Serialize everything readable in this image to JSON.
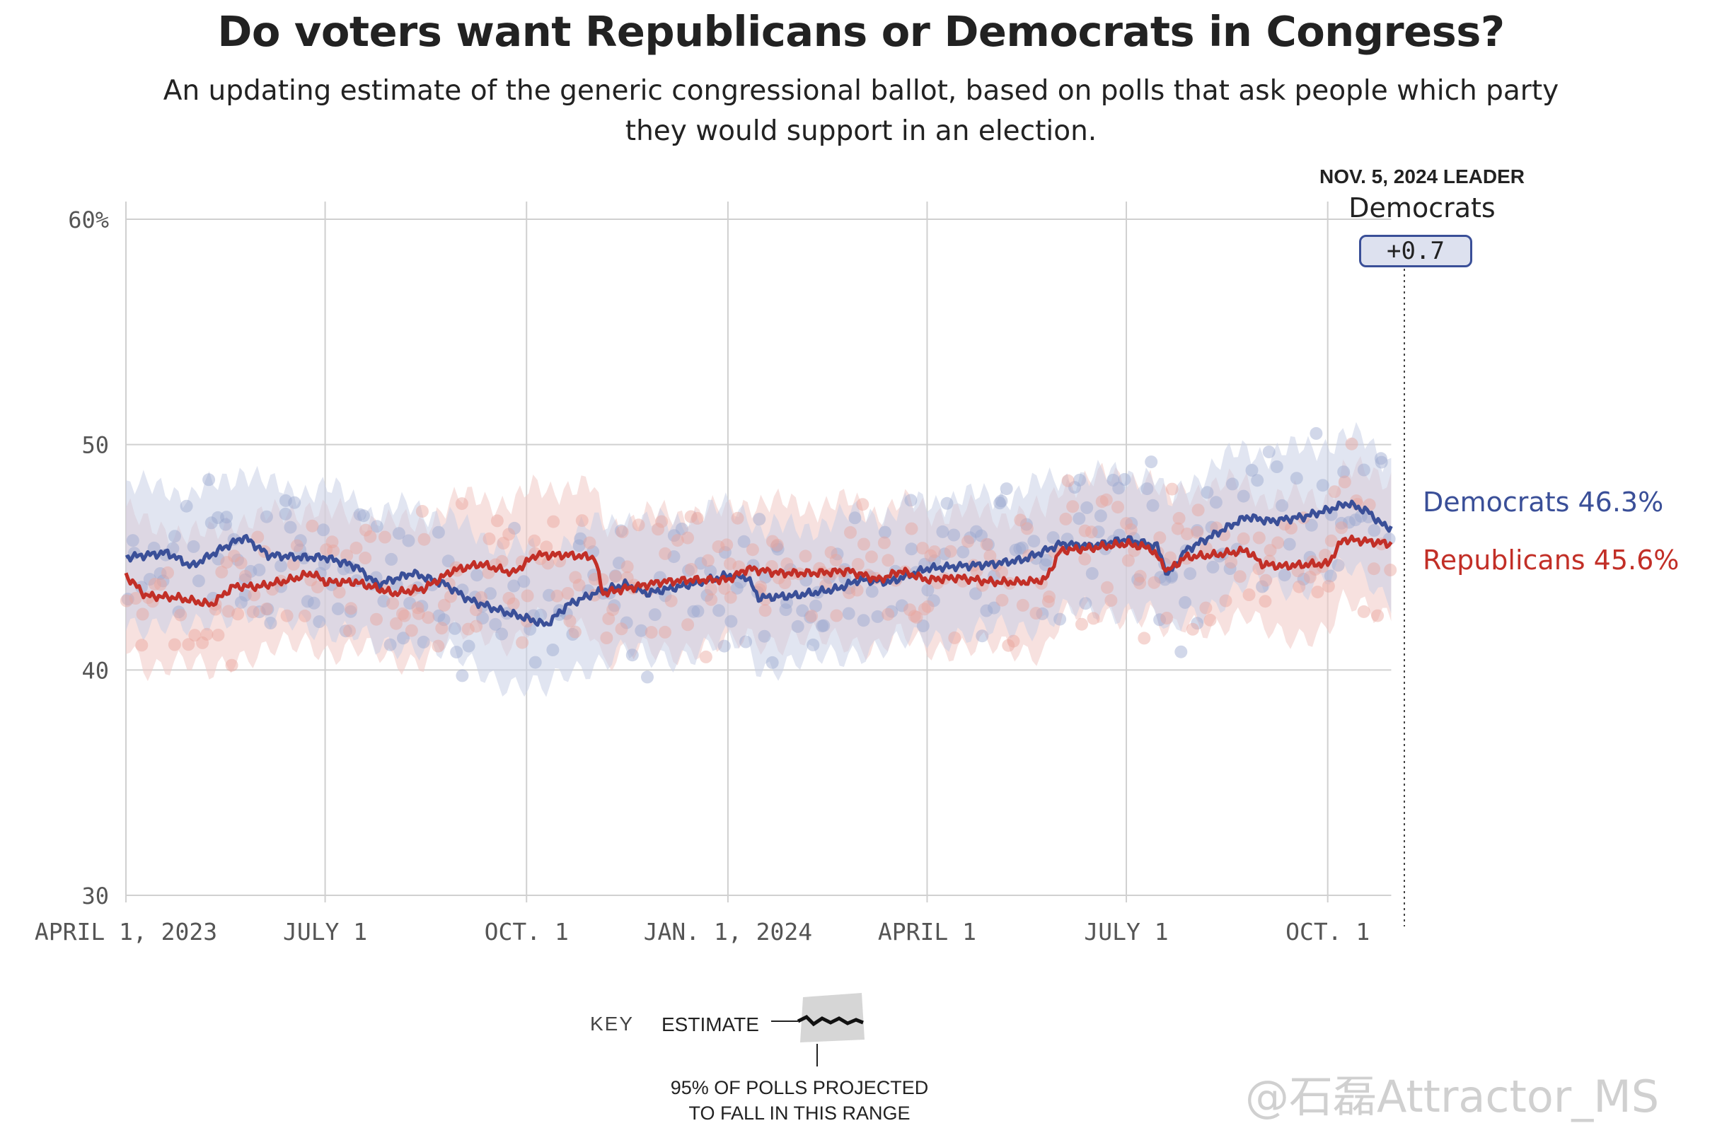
{
  "title": "Do voters want Republicans or Democrats in Congress?",
  "subtitle": "An updating estimate of the generic congressional ballot, based on polls that ask people which party they would support in an election.",
  "leader": {
    "label": "NOV. 5, 2024 LEADER",
    "party": "Democrats",
    "margin": "+0.7"
  },
  "end_labels": {
    "democrats": "Democrats 46.3%",
    "republicans": "Republicans 45.6%"
  },
  "key": {
    "label": "KEY",
    "estimate": "ESTIMATE",
    "range_line1": "95% OF POLLS PROJECTED",
    "range_line2": "TO FALL IN THIS RANGE"
  },
  "watermark": "@石磊Attractor_MS",
  "colors": {
    "democrats": "#3a4f98",
    "republicans": "#c22f27",
    "dem_band": "#c9d0e6",
    "rep_band": "#f0c9c5",
    "grid": "#d0d0d0"
  },
  "chart_data": {
    "type": "line",
    "x_domain": [
      "2023-04-01",
      "2024-11-05"
    ],
    "ylim": [
      30,
      60
    ],
    "y_ticks": [
      {
        "value": 60,
        "label": "60%"
      },
      {
        "value": 50,
        "label": "50"
      },
      {
        "value": 40,
        "label": "40"
      },
      {
        "value": 30,
        "label": "30"
      }
    ],
    "x_ticks": [
      {
        "date": "2023-04-01",
        "label": "APRIL 1, 2023"
      },
      {
        "date": "2023-07-01",
        "label": "JULY 1"
      },
      {
        "date": "2023-10-01",
        "label": "OCT. 1"
      },
      {
        "date": "2024-01-01",
        "label": "JAN. 1, 2024"
      },
      {
        "date": "2024-04-01",
        "label": "APRIL 1"
      },
      {
        "date": "2024-07-01",
        "label": "JULY 1"
      },
      {
        "date": "2024-10-01",
        "label": "OCT. 1"
      }
    ],
    "grid": true,
    "election_date": "2024-11-05",
    "series": [
      {
        "name": "Democrats",
        "color": "#3a4f98",
        "points": [
          [
            "2023-04-01",
            45.0
          ],
          [
            "2023-04-20",
            45.2
          ],
          [
            "2023-05-01",
            44.6
          ],
          [
            "2023-05-15",
            45.4
          ],
          [
            "2023-05-25",
            45.9
          ],
          [
            "2023-06-05",
            45.1
          ],
          [
            "2023-06-20",
            45.0
          ],
          [
            "2023-07-01",
            45.0
          ],
          [
            "2023-07-15",
            44.6
          ],
          [
            "2023-07-25",
            43.8
          ],
          [
            "2023-08-10",
            44.3
          ],
          [
            "2023-08-25",
            43.8
          ],
          [
            "2023-09-05",
            43.1
          ],
          [
            "2023-09-20",
            42.6
          ],
          [
            "2023-10-01",
            42.3
          ],
          [
            "2023-10-10",
            42.0
          ],
          [
            "2023-10-20",
            42.9
          ],
          [
            "2023-11-01",
            43.4
          ],
          [
            "2023-11-15",
            43.8
          ],
          [
            "2023-11-25",
            43.4
          ],
          [
            "2023-12-10",
            43.7
          ],
          [
            "2023-12-20",
            43.9
          ],
          [
            "2024-01-01",
            44.2
          ],
          [
            "2024-01-10",
            44.1
          ],
          [
            "2024-01-15",
            43.2
          ],
          [
            "2024-02-01",
            43.3
          ],
          [
            "2024-02-20",
            43.6
          ],
          [
            "2024-03-01",
            44.0
          ],
          [
            "2024-03-15",
            43.9
          ],
          [
            "2024-04-01",
            44.5
          ],
          [
            "2024-04-15",
            44.6
          ],
          [
            "2024-05-01",
            44.7
          ],
          [
            "2024-05-15",
            44.9
          ],
          [
            "2024-05-25",
            45.3
          ],
          [
            "2024-06-01",
            45.6
          ],
          [
            "2024-06-15",
            45.5
          ],
          [
            "2024-07-01",
            45.8
          ],
          [
            "2024-07-15",
            45.5
          ],
          [
            "2024-07-20",
            44.2
          ],
          [
            "2024-07-28",
            45.3
          ],
          [
            "2024-08-10",
            46.0
          ],
          [
            "2024-08-25",
            46.8
          ],
          [
            "2024-09-05",
            46.6
          ],
          [
            "2024-09-20",
            46.8
          ],
          [
            "2024-10-01",
            47.1
          ],
          [
            "2024-10-10",
            47.4
          ],
          [
            "2024-10-20",
            47.0
          ],
          [
            "2024-10-25",
            46.5
          ],
          [
            "2024-10-30",
            46.3
          ]
        ]
      },
      {
        "name": "Republicans",
        "color": "#c22f27",
        "points": [
          [
            "2023-04-01",
            44.2
          ],
          [
            "2023-04-10",
            43.3
          ],
          [
            "2023-04-25",
            43.2
          ],
          [
            "2023-05-10",
            42.9
          ],
          [
            "2023-05-20",
            43.7
          ],
          [
            "2023-06-01",
            43.7
          ],
          [
            "2023-06-15",
            44.0
          ],
          [
            "2023-06-25",
            44.3
          ],
          [
            "2023-07-01",
            43.9
          ],
          [
            "2023-07-15",
            43.9
          ],
          [
            "2023-08-01",
            43.4
          ],
          [
            "2023-08-15",
            43.6
          ],
          [
            "2023-08-28",
            44.4
          ],
          [
            "2023-09-10",
            44.7
          ],
          [
            "2023-09-25",
            44.3
          ],
          [
            "2023-10-05",
            45.1
          ],
          [
            "2023-10-20",
            45.1
          ],
          [
            "2023-11-01",
            45.0
          ],
          [
            "2023-11-05",
            43.4
          ],
          [
            "2023-11-15",
            43.6
          ],
          [
            "2023-12-01",
            43.9
          ],
          [
            "2023-12-15",
            44.0
          ],
          [
            "2024-01-01",
            44.0
          ],
          [
            "2024-01-10",
            44.5
          ],
          [
            "2024-01-25",
            44.3
          ],
          [
            "2024-02-10",
            44.3
          ],
          [
            "2024-02-25",
            44.4
          ],
          [
            "2024-03-10",
            44.0
          ],
          [
            "2024-03-20",
            44.4
          ],
          [
            "2024-04-01",
            44.0
          ],
          [
            "2024-04-15",
            44.1
          ],
          [
            "2024-05-01",
            43.9
          ],
          [
            "2024-05-15",
            43.9
          ],
          [
            "2024-05-25",
            44.0
          ],
          [
            "2024-06-01",
            45.3
          ],
          [
            "2024-06-15",
            45.4
          ],
          [
            "2024-07-01",
            45.6
          ],
          [
            "2024-07-12",
            45.4
          ],
          [
            "2024-07-20",
            44.4
          ],
          [
            "2024-07-28",
            45.0
          ],
          [
            "2024-08-10",
            45.1
          ],
          [
            "2024-08-25",
            45.3
          ],
          [
            "2024-09-01",
            44.7
          ],
          [
            "2024-09-10",
            44.6
          ],
          [
            "2024-09-25",
            44.7
          ],
          [
            "2024-10-01",
            44.7
          ],
          [
            "2024-10-08",
            45.8
          ],
          [
            "2024-10-20",
            45.7
          ],
          [
            "2024-10-30",
            45.6
          ]
        ]
      }
    ],
    "end_values": {
      "Democrats": 46.3,
      "Republicans": 45.6
    }
  }
}
